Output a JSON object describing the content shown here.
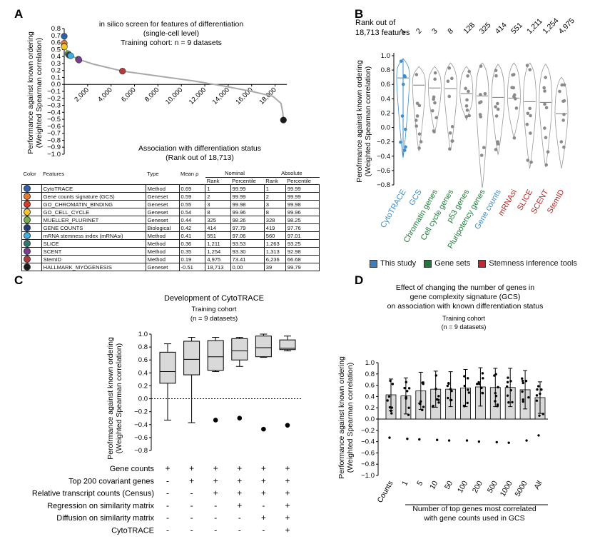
{
  "panel_labels": {
    "a": "A",
    "b": "B",
    "c": "C",
    "d": "D"
  },
  "panelA": {
    "title_l1": "in silico screen for features of differentiation",
    "title_l2": "(single-cell level)",
    "title_l3": "Training cohort: n = 9 datasets",
    "ylabel_l1": "Performance against known ordering",
    "ylabel_l2": "(Weighted Spearman correlation)",
    "xlabel_l1": "Association with differentiation status",
    "xlabel_l2": "(Rank out of 18,713)",
    "yticks": [
      "0.8",
      "0.7",
      "0.6",
      "0.5",
      "0.4",
      "0.3",
      "0.2",
      "0.1",
      "0.0",
      "−0.1",
      "−0.2",
      "−0.3",
      "−0.4",
      "−0.5",
      "−0.6",
      "−0.7",
      "−0.8",
      "−0.9",
      "−1.0"
    ],
    "xticks": [
      "2,000",
      "4,000",
      "6,000",
      "8,000",
      "10,000",
      "12,000",
      "14,000",
      "16,000",
      "18,000"
    ]
  },
  "chart_data": [
    {
      "type": "scatter",
      "title": "in silico screen for features of differentiation (single-cell level)",
      "xlabel": "Association with differentiation status (Rank out of 18,713)",
      "ylabel": "Performance against known ordering (Weighted Spearman correlation)",
      "xlim": [
        0,
        19000
      ],
      "ylim": [
        -1.0,
        0.8
      ],
      "x": [
        1,
        2,
        3,
        8,
        325,
        414,
        551,
        1211,
        1254,
        4975,
        18713
      ],
      "y": [
        0.69,
        0.59,
        0.55,
        0.54,
        0.44,
        0.42,
        0.41,
        0.36,
        0.35,
        0.19,
        -0.51
      ],
      "colors": [
        "#2f5fa8",
        "#e8792b",
        "#d63b2a",
        "#f3c62d",
        "#76b24c",
        "#223a7a",
        "#3eb0e3",
        "#2c7b6e",
        "#7a3d91",
        "#b23a3a",
        "#1a1a1a"
      ]
    },
    {
      "type": "violin",
      "categories": [
        "CytoTRACE",
        "GCS",
        "Chromatin genes",
        "Cell cycle genes",
        "p53 genes",
        "Pluripotency genes",
        "Gene counts",
        "mRNAsi",
        "SLICE",
        "SCENT",
        "StemID"
      ],
      "medians": [
        0.69,
        0.59,
        0.55,
        0.54,
        0.47,
        0.44,
        0.42,
        0.41,
        0.36,
        0.35,
        0.19
      ],
      "ylim": [
        -0.8,
        1.0
      ],
      "ylabel": "Performance against known ordering (Weighted Spearman correlation)"
    },
    {
      "type": "box",
      "title": "Development of CytoTRACE",
      "ylim": [
        -0.8,
        1.0
      ],
      "boxes": [
        {
          "min": -0.33,
          "q1": 0.24,
          "median": 0.42,
          "q3": 0.72,
          "max": 0.85,
          "outliers": []
        },
        {
          "min": -0.37,
          "q1": 0.37,
          "median": 0.61,
          "q3": 0.89,
          "max": 0.95,
          "outliers": []
        },
        {
          "min": 0.42,
          "q1": 0.44,
          "median": 0.65,
          "q3": 0.9,
          "max": 0.95,
          "outliers": [
            -0.33
          ]
        },
        {
          "min": 0.5,
          "q1": 0.6,
          "median": 0.74,
          "q3": 0.93,
          "max": 0.95,
          "outliers": [
            -0.3
          ]
        },
        {
          "min": 0.64,
          "q1": 0.65,
          "median": 0.79,
          "q3": 0.97,
          "max": 1.0,
          "outliers": [
            -0.47
          ]
        },
        {
          "min": 0.74,
          "q1": 0.76,
          "median": 0.78,
          "q3": 0.91,
          "max": 0.97,
          "outliers": [
            -0.41
          ]
        }
      ]
    },
    {
      "type": "bar",
      "title": "Effect of changing the number of genes in gene complexity signature (GCS) on association with known differentiation status",
      "categories": [
        "Counts",
        "1",
        "5",
        "10",
        "50",
        "100",
        "200",
        "500",
        "1000",
        "5000",
        "All"
      ],
      "values": [
        0.43,
        0.41,
        0.5,
        0.53,
        0.53,
        0.55,
        0.57,
        0.56,
        0.56,
        0.52,
        0.38
      ],
      "errors": [
        0.28,
        0.32,
        0.33,
        0.32,
        0.31,
        0.33,
        0.34,
        0.34,
        0.34,
        0.34,
        0.28
      ],
      "ylim": [
        -1.0,
        1.0
      ],
      "xlabel": "Number of top genes most correlated with gene counts used in GCS",
      "ylabel": "Performance against known ordering (Weighted Spearman correlation)"
    }
  ],
  "table": {
    "headers": {
      "color": "Color",
      "features": "Features",
      "type": "Type",
      "mean": "Mean ρ",
      "nominal": "Nominal",
      "absolute": "Absolute",
      "rank": "Rank",
      "percentile": "Percentile"
    },
    "rows": [
      {
        "color": "#2f5fa8",
        "feature": "CytoTRACE",
        "type": "Method",
        "mean": "0.69",
        "nrank": "1",
        "npct": "99.99",
        "arank": "1",
        "apct": "99.99"
      },
      {
        "color": "#e8792b",
        "feature": "Gene counts signature (GCS)",
        "type": "Geneset",
        "mean": "0.59",
        "nrank": "2",
        "npct": "99.99",
        "arank": "2",
        "apct": "99.99"
      },
      {
        "color": "#d63b2a",
        "feature": "GO_CHROMATIN_BINDING",
        "type": "Geneset",
        "mean": "0.55",
        "nrank": "3",
        "npct": "99.98",
        "arank": "3",
        "apct": "99.98"
      },
      {
        "color": "#f3c62d",
        "feature": "GO_CELL_CYCLE",
        "type": "Geneset",
        "mean": "0.54",
        "nrank": "8",
        "npct": "99.96",
        "arank": "8",
        "apct": "99.96"
      },
      {
        "color": "#76b24c",
        "feature": "MUELLER_PLURINET",
        "type": "Geneset",
        "mean": "0.44",
        "nrank": "325",
        "npct": "98.26",
        "arank": "328",
        "apct": "98.25"
      },
      {
        "color": "#223a7a",
        "feature": "GENE COUNTS",
        "type": "Biological",
        "mean": "0.42",
        "nrank": "414",
        "npct": "97.79",
        "arank": "419",
        "apct": "97.76"
      },
      {
        "color": "#3eb0e3",
        "feature": "mRNA stemness index (mRNAsi)",
        "type": "Method",
        "mean": "0.41",
        "nrank": "551",
        "npct": "97.06",
        "arank": "560",
        "apct": "97.01"
      },
      {
        "color": "#2c7b6e",
        "feature": "SLICE",
        "type": "Method",
        "mean": "0.36",
        "nrank": "1,211",
        "npct": "93.53",
        "arank": "1,263",
        "apct": "93.25"
      },
      {
        "color": "#7a3d91",
        "feature": "SCENT",
        "type": "Method",
        "mean": "0.35",
        "nrank": "1,254",
        "npct": "93.30",
        "arank": "1,313",
        "apct": "92.98"
      },
      {
        "color": "#b23a3a",
        "feature": "StemID",
        "type": "Method",
        "mean": "0.19",
        "nrank": "4,975",
        "npct": "73.41",
        "arank": "6,236",
        "apct": "66.68"
      },
      {
        "color": "#1a1a1a",
        "feature": "HALLMARK_MYOGENESIS",
        "type": "Geneset",
        "mean": "-0.51",
        "nrank": "18,713",
        "npct": "0.00",
        "arank": "39",
        "apct": "99.79"
      }
    ]
  },
  "panelB": {
    "rank_label_l1": "Rank out of",
    "rank_label_l2": "18,713 features",
    "ranks": [
      "1",
      "2",
      "3",
      "8",
      "128",
      "325",
      "414",
      "551",
      "1,211",
      "1,254",
      "4,975"
    ],
    "ylabel_l1": "Perofrmance against known ordering",
    "ylabel_l2": "(Weighted Spearman correlation)",
    "yticks": [
      "1.0",
      "0.8",
      "0.6",
      "0.4",
      "0.2",
      "0.0",
      "−0.2",
      "−0.4",
      "−0.6",
      "−0.8"
    ],
    "cat_colors": [
      "#3c8dc8",
      "#3c8dc8",
      "#1f7a3a",
      "#1f7a3a",
      "#1f7a3a",
      "#1f7a3a",
      "#3c8dc8",
      "#b52a2a",
      "#b52a2a",
      "#b52a2a",
      "#b52a2a"
    ],
    "legend": [
      {
        "label": "This study",
        "color": "#3c7fc0"
      },
      {
        "label": "Gene sets",
        "color": "#1f7a3a"
      },
      {
        "label": "Stemness inference tools",
        "color": "#c0282d"
      }
    ]
  },
  "panelC": {
    "title": "Development of CytoTRACE",
    "subtitle_l1": "Training cohort",
    "subtitle_l2": "(n = 9 datasets)",
    "ylabel_l1": "Perofrmance against known ordering",
    "ylabel_l2": "(Weighted Spearman correlation)",
    "yticks": [
      "1.0",
      "0.8",
      "0.6",
      "0.4",
      "0.2",
      "0.0",
      "−0.2",
      "−0.4",
      "−0.6",
      "−0.8"
    ],
    "rows": [
      {
        "label": "Gene counts",
        "signs": [
          "+",
          "+",
          "+",
          "+",
          "+",
          "+"
        ]
      },
      {
        "label": "Top 200 covariant genes",
        "signs": [
          "-",
          "+",
          "+",
          "+",
          "+",
          "+"
        ]
      },
      {
        "label": "Relative transcript counts (Census)",
        "signs": [
          "-",
          "-",
          "+",
          "+",
          "+",
          "+"
        ]
      },
      {
        "label": "Regression on similarity matrix",
        "signs": [
          "-",
          "-",
          "-",
          "+",
          "-",
          "+"
        ]
      },
      {
        "label": "Diffusion on similarity matrix",
        "signs": [
          "-",
          "-",
          "-",
          "-",
          "+",
          "+"
        ]
      },
      {
        "label": "CytoTRACE",
        "signs": [
          "-",
          "-",
          "-",
          "-",
          "-",
          "+"
        ]
      }
    ]
  },
  "panelD": {
    "title_l1": "Effect of changing the number of genes in",
    "title_l2": "gene complexity signature (GCS)",
    "title_l3": "on association with known differentiation status",
    "subtitle_l1": "Training cohort",
    "subtitle_l2": "(n = 9 datasets)",
    "ylabel_l1": "Performance against known ordering",
    "ylabel_l2": "(Weighted Spearman correlation)",
    "xlabel_l1": "Number of top genes most correlated",
    "xlabel_l2": "with gene counts used in GCS",
    "yticks": [
      "1.0",
      "0.8",
      "0.6",
      "0.4",
      "0.2",
      "0.0",
      "−0.2",
      "−0.4",
      "−0.6",
      "−0.8",
      "−1.0"
    ]
  }
}
